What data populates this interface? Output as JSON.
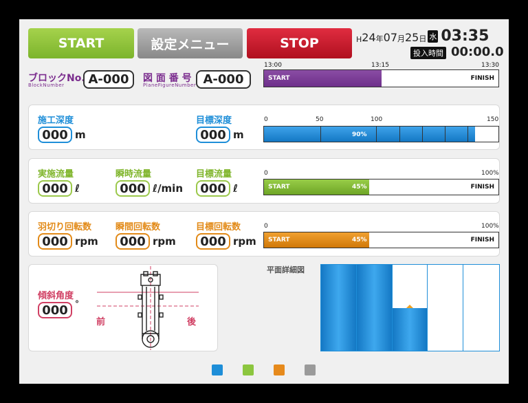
{
  "header": {
    "start_label": "START",
    "settings_label": "設定メニュー",
    "stop_label": "STOP",
    "era": "H",
    "year": "24",
    "year_unit": "年",
    "month": "07",
    "month_unit": "月",
    "day": "25",
    "day_unit": "日",
    "weekday": "水",
    "clock": "03:35",
    "input_time_label": "投入時間",
    "input_time": "00:00.0"
  },
  "block": {
    "label": "ブロックNo.",
    "sublabel": "BlockNumber",
    "value": "A-000"
  },
  "figure": {
    "label": "図 面 番 号",
    "sublabel": "PlaneFigureNumber",
    "value": "A-000"
  },
  "timeline": {
    "t0": "13:00",
    "t1": "13:15",
    "t2": "13:30",
    "start_label": "START",
    "finish_label": "FINISH",
    "progress": 0.5,
    "color": "#7b3997"
  },
  "depth": {
    "work_label": "施工深度",
    "work_value": "000",
    "work_unit": "m",
    "target_label": "目標深度",
    "target_value": "000",
    "target_unit": "m",
    "ticks": [
      "0",
      "50",
      "100",
      "150"
    ],
    "percent_label": "90%",
    "progress": 0.9,
    "color": "#1e8ed8"
  },
  "flow": {
    "actual_label": "実施流量",
    "actual_value": "000",
    "actual_unit": "ℓ",
    "instant_label": "瞬時流量",
    "instant_value": "000",
    "instant_unit": "ℓ/min",
    "target_label": "目標流量",
    "target_value": "000",
    "target_unit": "ℓ",
    "tick_start": "0",
    "tick_end": "100%",
    "start_label": "START",
    "finish_label": "FINISH",
    "percent_label": "45%",
    "progress": 0.45,
    "color": "#7fb52b"
  },
  "rotation": {
    "blade_label": "羽切り回転数",
    "blade_value": "000",
    "blade_unit": "rpm",
    "instant_label": "瞬間回転数",
    "instant_value": "000",
    "instant_unit": "rpm",
    "target_label": "目標回転数",
    "target_value": "000",
    "target_unit": "rpm",
    "tick_start": "0",
    "tick_end": "100%",
    "start_label": "START",
    "finish_label": "FINISH",
    "percent_label": "45%",
    "progress": 0.45,
    "color": "#e28a18"
  },
  "tilt": {
    "label": "傾斜角度",
    "value": "000",
    "unit": "°",
    "front_label": "前",
    "back_label": "後"
  },
  "plan": {
    "title": "平面詳細図",
    "columns_fill": [
      1,
      1,
      0.5,
      0,
      0
    ],
    "color": "#1e8ed8",
    "marker_color": "#f0a020"
  },
  "legend": {
    "colors": [
      "#1e8ed8",
      "#8cc63f",
      "#e68a1c",
      "#9a9a9a"
    ]
  }
}
